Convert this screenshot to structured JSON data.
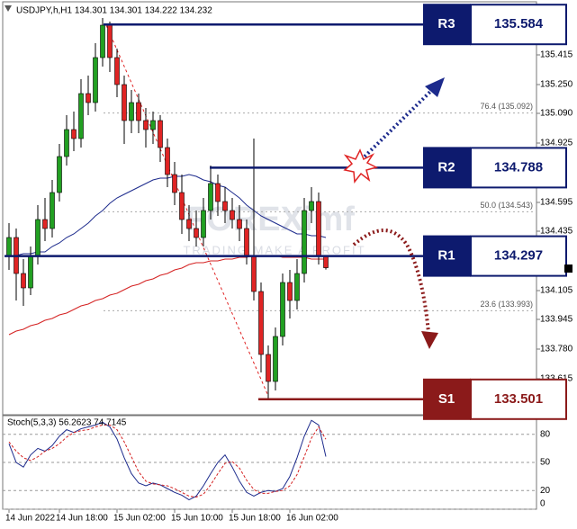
{
  "chart_data": [
    {
      "type": "candlestick",
      "title": "USDJPY,h,H1  134.301 134.301 134.222 134.232",
      "categories": [
        "14 Jun 2022",
        null,
        null,
        null,
        null,
        null,
        null,
        "14 Jun 18:00",
        null,
        null,
        null,
        null,
        null,
        null,
        null,
        "15 Jun 02:00",
        null,
        null,
        null,
        null,
        null,
        null,
        null,
        "15 Jun 10:00",
        null,
        null,
        null,
        null,
        null,
        null,
        null,
        "15 Jun 18:00",
        null,
        null,
        null,
        null,
        null,
        null,
        null,
        "16 Jun 02:00",
        null,
        null,
        null,
        null,
        null
      ],
      "open": [
        134.3,
        134.4,
        134.2,
        134.12,
        134.3,
        134.5,
        134.45,
        134.65,
        134.85,
        135.0,
        134.95,
        135.2,
        135.15,
        135.4,
        135.58,
        135.4,
        135.25,
        135.05,
        135.15,
        135.05,
        135.0,
        135.05,
        134.9,
        134.75,
        134.65,
        134.5,
        134.45,
        134.4,
        134.55,
        134.7,
        134.6,
        134.55,
        134.5,
        134.45,
        134.3,
        134.1,
        133.75,
        133.6,
        133.85,
        134.15,
        134.05,
        134.2,
        134.55,
        134.6,
        134.301
      ],
      "high": [
        134.48,
        134.45,
        134.28,
        134.35,
        134.58,
        134.62,
        134.72,
        134.92,
        135.08,
        135.1,
        135.28,
        135.3,
        135.48,
        135.62,
        135.6,
        135.45,
        135.3,
        135.22,
        135.2,
        135.12,
        135.1,
        135.08,
        134.95,
        134.82,
        134.75,
        134.58,
        134.55,
        134.62,
        134.8,
        134.75,
        134.68,
        134.62,
        134.58,
        134.5,
        134.95,
        134.15,
        133.8,
        133.9,
        134.2,
        134.22,
        134.28,
        134.62,
        134.68,
        134.65,
        134.301
      ],
      "low": [
        134.22,
        134.05,
        134.02,
        134.08,
        134.25,
        134.38,
        134.4,
        134.6,
        134.8,
        134.88,
        134.9,
        135.08,
        135.1,
        135.35,
        135.32,
        135.18,
        134.92,
        134.98,
        134.98,
        134.9,
        134.92,
        134.82,
        134.68,
        134.58,
        134.42,
        134.38,
        134.35,
        134.35,
        134.5,
        134.52,
        134.48,
        134.45,
        134.38,
        134.25,
        134.05,
        133.65,
        133.5,
        133.55,
        133.8,
        133.95,
        134.0,
        134.15,
        134.48,
        134.25,
        134.222
      ],
      "close": [
        134.4,
        134.2,
        134.12,
        134.3,
        134.5,
        134.45,
        134.65,
        134.85,
        135.0,
        134.95,
        135.2,
        135.15,
        135.4,
        135.58,
        135.4,
        135.25,
        135.05,
        135.15,
        135.05,
        135.0,
        135.05,
        134.9,
        134.75,
        134.65,
        134.5,
        134.45,
        134.4,
        134.55,
        134.7,
        134.6,
        134.55,
        134.5,
        134.45,
        134.3,
        134.1,
        133.75,
        133.6,
        133.85,
        134.15,
        134.05,
        134.2,
        134.55,
        134.6,
        134.3,
        134.232
      ],
      "up_color": "#22a022",
      "down_color": "#e02424",
      "series": [
        {
          "color": "#1c2a8c",
          "values": [
            134.3,
            134.3,
            134.31,
            134.31,
            134.32,
            134.32,
            134.35,
            134.37,
            134.4,
            134.42,
            134.45,
            134.48,
            134.52,
            134.55,
            134.59,
            134.62,
            134.64,
            134.66,
            134.68,
            134.7,
            134.72,
            134.73,
            134.73,
            134.74,
            134.74,
            134.75,
            134.74,
            134.72,
            134.71,
            134.69,
            134.68,
            134.65,
            134.62,
            134.58,
            134.55,
            134.52,
            134.5,
            134.48,
            134.46,
            134.44,
            134.42,
            134.42,
            134.41,
            134.41,
            134.4
          ]
        },
        {
          "color": "#d42020",
          "values": [
            133.86,
            133.88,
            133.89,
            133.91,
            133.92,
            133.94,
            133.95,
            133.97,
            133.98,
            134.0,
            134.02,
            134.03,
            134.05,
            134.06,
            134.08,
            134.09,
            134.11,
            134.13,
            134.14,
            134.16,
            134.17,
            134.19,
            134.2,
            134.22,
            134.23,
            134.25,
            134.26,
            134.26,
            134.27,
            134.27,
            134.28,
            134.28,
            134.29,
            134.29,
            134.3,
            134.3,
            134.3,
            134.3,
            134.29,
            134.29,
            134.29,
            134.29,
            134.28,
            134.28,
            134.28
          ]
        }
      ],
      "ylim": [
        133.42,
        135.72
      ],
      "yticks": [
        135.415,
        {
          "value": 135.25,
          "label": "135.250"
        },
        {
          "value": 135.09,
          "label": "135.090"
        },
        134.925,
        134.595,
        134.435,
        134.105,
        133.945,
        {
          "value": 133.78,
          "label": "133.780"
        },
        133.615
      ],
      "fib_levels": [
        {
          "value": 135.092,
          "label": "76.4 (135.092)"
        },
        {
          "value": 134.543,
          "label": "50.0 (134.543)"
        },
        {
          "value": 133.993,
          "label": "23.6 (133.993)"
        }
      ],
      "sr_levels": [
        {
          "name": "R3",
          "value": 135.584,
          "color": "#0d1a6e"
        },
        {
          "name": "R2",
          "value": 134.788,
          "color": "#0d1a6e"
        },
        {
          "name": "R1",
          "value": 134.297,
          "color": "#0d1a6e"
        },
        {
          "name": "S1",
          "value": 133.501,
          "color": "#8b1a1a"
        }
      ],
      "watermark": "FOREXimf",
      "watermark_tagline": "TRADING MAKE A PROFIT"
    },
    {
      "type": "stochastic",
      "title": "Stoch(5,3,3) 56.2623 74.7145",
      "series": [
        {
          "color": "#1c2a8c",
          "values": [
            70,
            50,
            45,
            58,
            65,
            62,
            68,
            78,
            85,
            82,
            86,
            88,
            90,
            93,
            88,
            75,
            55,
            38,
            28,
            25,
            28,
            26,
            22,
            18,
            15,
            10,
            14,
            25,
            38,
            50,
            58,
            45,
            30,
            18,
            14,
            18,
            20,
            19,
            22,
            35,
            55,
            78,
            95,
            90,
            56.2623
          ]
        },
        {
          "color": "#d42020",
          "dashed": true,
          "values": [
            72,
            62,
            55,
            52,
            56,
            62,
            65,
            70,
            77,
            82,
            84,
            85,
            88,
            90,
            90,
            85,
            72,
            56,
            40,
            30,
            27,
            26,
            25,
            22,
            18,
            14,
            13,
            16,
            26,
            38,
            49,
            51,
            44,
            31,
            21,
            17,
            17,
            19,
            20,
            25,
            37,
            56,
            76,
            88,
            74.7145
          ]
        }
      ],
      "ylim": [
        0,
        100
      ],
      "yticks": [
        0,
        20,
        50,
        80
      ]
    }
  ]
}
